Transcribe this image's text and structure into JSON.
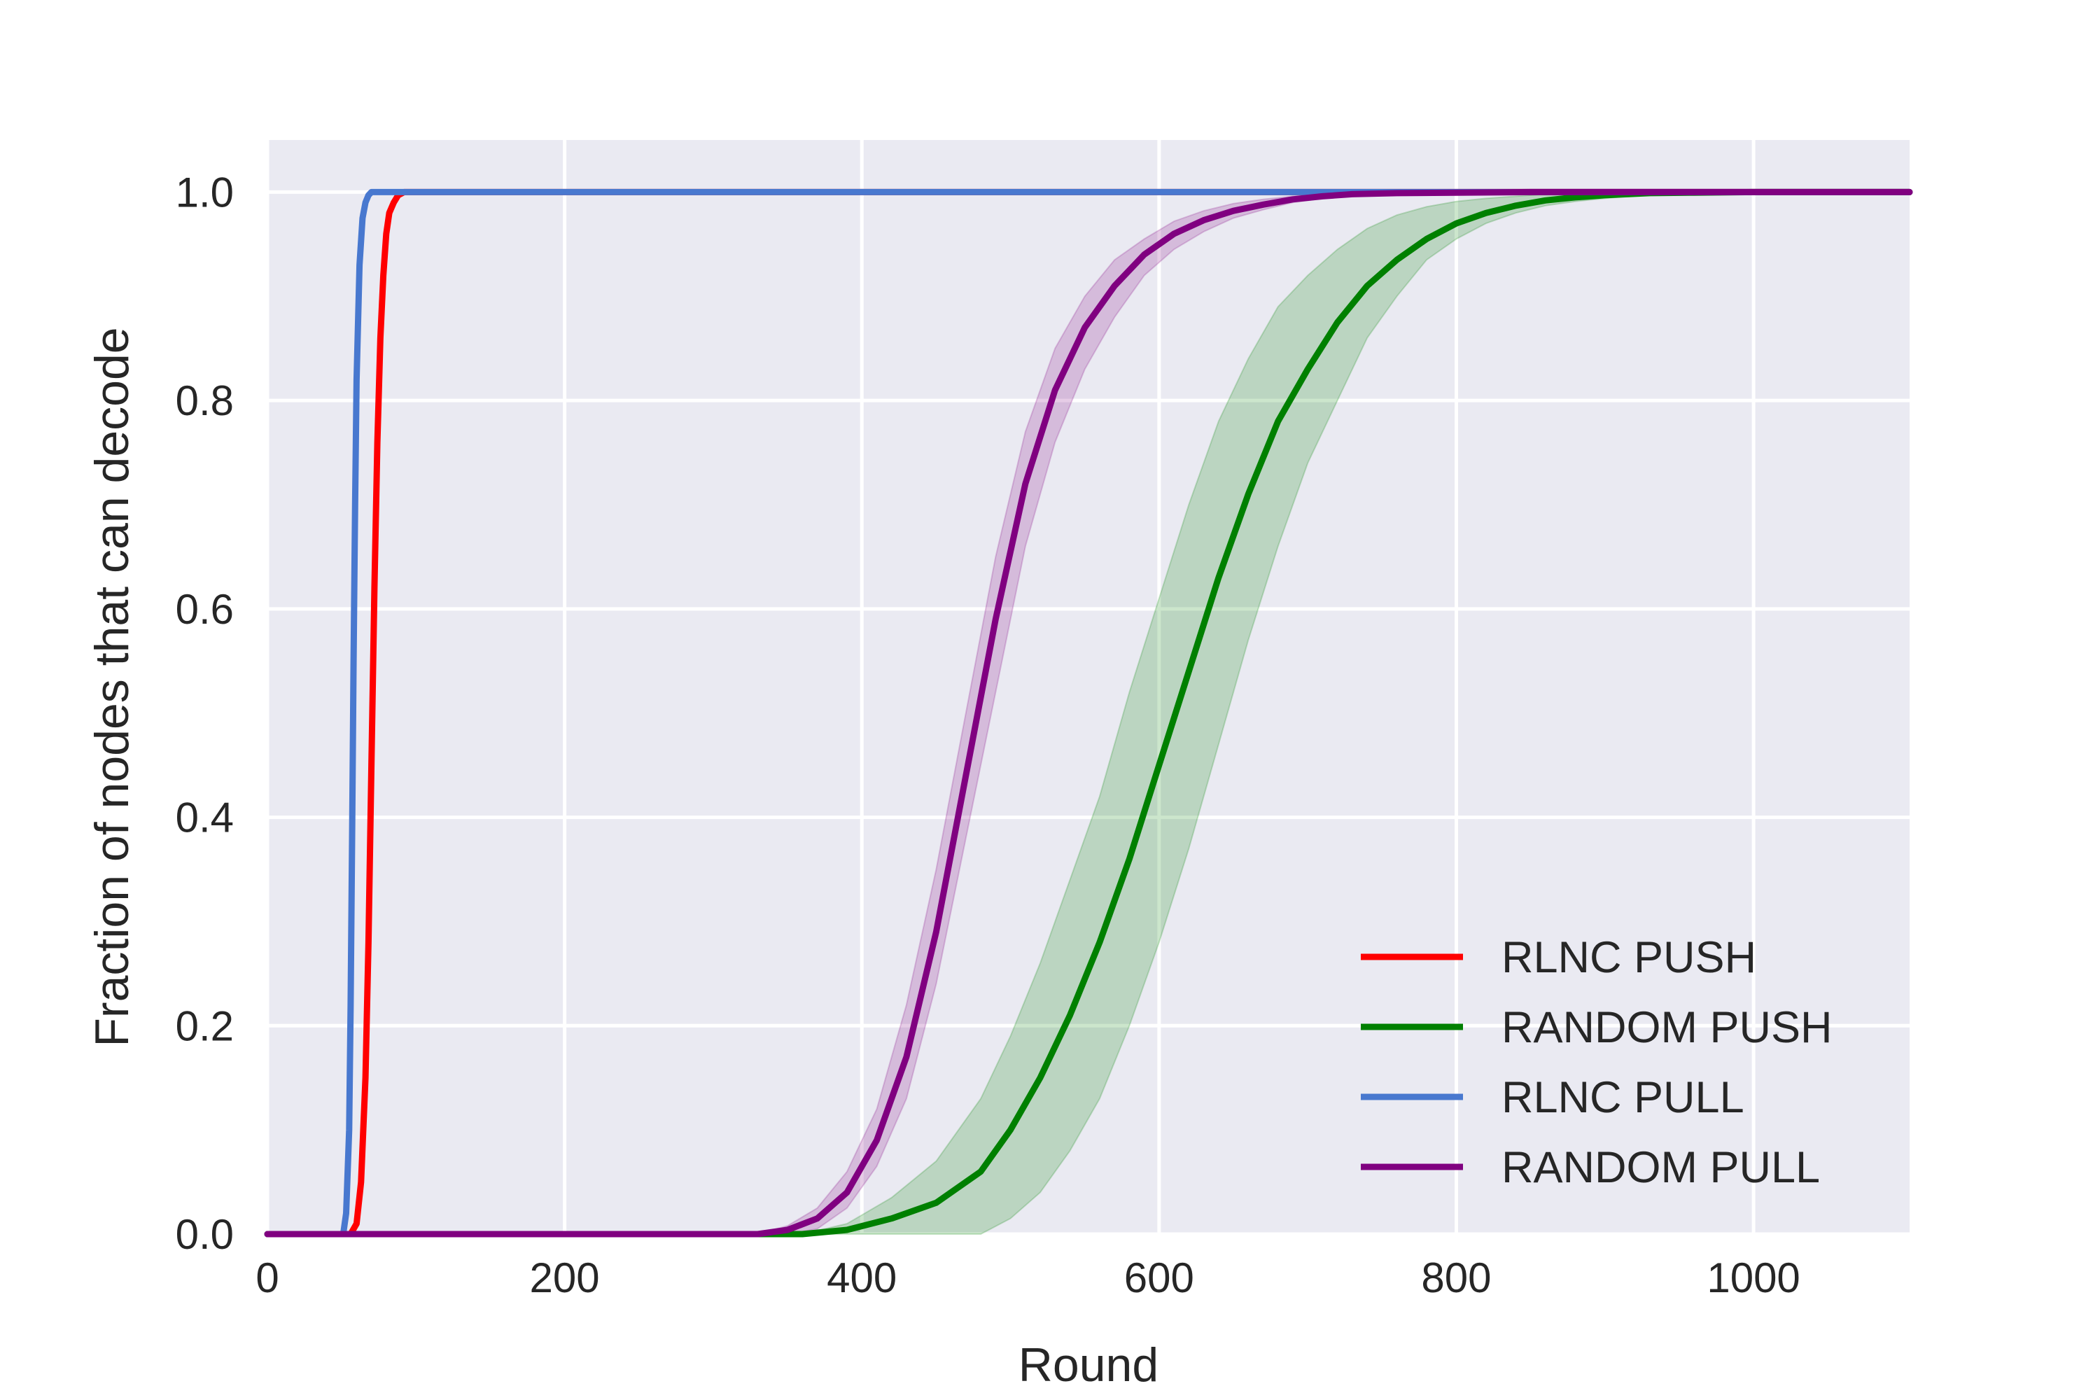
{
  "chart_data": {
    "type": "line",
    "xlabel": "Round",
    "ylabel": "Fraction of nodes that can decode",
    "xlim": [
      0,
      1105
    ],
    "ylim": [
      0,
      1.05
    ],
    "xticks": [
      0,
      200,
      400,
      600,
      800,
      1000
    ],
    "xtick_labels": [
      "0",
      "200",
      "400",
      "600",
      "800",
      "1000"
    ],
    "yticks": [
      0.0,
      0.2,
      0.4,
      0.6,
      0.8,
      1.0
    ],
    "ytick_labels": [
      "0.0",
      "0.2",
      "0.4",
      "0.6",
      "0.8",
      "1.0"
    ],
    "grid": true,
    "legend_position": "lower-right",
    "series": [
      {
        "name": "RLNC PUSH",
        "color": "#ff0000",
        "x": [
          0,
          56,
          60,
          63,
          66,
          68,
          70,
          72,
          74,
          76,
          78,
          80,
          82,
          85,
          88,
          92,
          1105
        ],
        "y": [
          0,
          0,
          0.01,
          0.05,
          0.15,
          0.28,
          0.45,
          0.62,
          0.76,
          0.86,
          0.92,
          0.96,
          0.98,
          0.99,
          0.997,
          1.0,
          1.0
        ]
      },
      {
        "name": "RANDOM PUSH",
        "color": "#008000",
        "x": [
          0,
          360,
          390,
          420,
          450,
          480,
          500,
          520,
          540,
          560,
          580,
          600,
          620,
          640,
          660,
          680,
          700,
          720,
          740,
          760,
          780,
          800,
          820,
          840,
          860,
          880,
          900,
          930,
          960,
          1000,
          1105
        ],
        "y": [
          0,
          0,
          0.004,
          0.015,
          0.03,
          0.06,
          0.1,
          0.15,
          0.21,
          0.28,
          0.36,
          0.45,
          0.54,
          0.63,
          0.71,
          0.78,
          0.83,
          0.875,
          0.91,
          0.935,
          0.955,
          0.97,
          0.98,
          0.987,
          0.992,
          0.995,
          0.997,
          0.999,
          0.9995,
          1.0,
          1.0
        ],
        "lower": [
          0,
          0,
          0.0,
          0.0,
          0.0,
          0.0,
          0.015,
          0.04,
          0.08,
          0.13,
          0.2,
          0.28,
          0.37,
          0.47,
          0.57,
          0.66,
          0.74,
          0.8,
          0.86,
          0.9,
          0.935,
          0.955,
          0.97,
          0.98,
          0.987,
          0.991,
          0.994,
          0.998,
          0.999,
          1.0,
          1.0
        ],
        "upper": [
          0,
          0,
          0.01,
          0.035,
          0.07,
          0.13,
          0.19,
          0.26,
          0.34,
          0.42,
          0.52,
          0.61,
          0.7,
          0.78,
          0.84,
          0.89,
          0.92,
          0.945,
          0.965,
          0.978,
          0.986,
          0.991,
          0.994,
          0.996,
          0.998,
          0.999,
          1.0,
          1.0,
          1.0,
          1.0,
          1.0
        ]
      },
      {
        "name": "RLNC PULL",
        "color": "#4878cf",
        "x": [
          0,
          51,
          53,
          55,
          56,
          57,
          58,
          59,
          60,
          62,
          64,
          66,
          68,
          70,
          1105
        ],
        "y": [
          0,
          0,
          0.02,
          0.1,
          0.22,
          0.38,
          0.55,
          0.7,
          0.82,
          0.93,
          0.975,
          0.99,
          0.997,
          1.0,
          1.0
        ]
      },
      {
        "name": "RANDOM PULL",
        "color": "#800080",
        "x": [
          0,
          330,
          350,
          370,
          390,
          410,
          430,
          450,
          470,
          490,
          510,
          530,
          550,
          570,
          590,
          610,
          630,
          650,
          670,
          690,
          710,
          730,
          760,
          800,
          850,
          1105
        ],
        "y": [
          0,
          0,
          0.004,
          0.015,
          0.04,
          0.09,
          0.17,
          0.29,
          0.44,
          0.59,
          0.72,
          0.81,
          0.87,
          0.91,
          0.94,
          0.96,
          0.973,
          0.982,
          0.988,
          0.993,
          0.996,
          0.998,
          0.999,
          0.9995,
          1.0,
          1.0
        ],
        "lower": [
          0,
          0,
          0.0,
          0.005,
          0.025,
          0.065,
          0.13,
          0.24,
          0.38,
          0.52,
          0.66,
          0.76,
          0.83,
          0.88,
          0.92,
          0.945,
          0.962,
          0.975,
          0.983,
          0.99,
          0.994,
          0.997,
          0.998,
          0.999,
          1.0,
          1.0
        ],
        "upper": [
          0,
          0,
          0.008,
          0.025,
          0.06,
          0.12,
          0.22,
          0.35,
          0.5,
          0.65,
          0.77,
          0.85,
          0.9,
          0.935,
          0.955,
          0.972,
          0.982,
          0.989,
          0.993,
          0.996,
          0.998,
          0.999,
          1.0,
          1.0,
          1.0,
          1.0
        ]
      }
    ]
  }
}
